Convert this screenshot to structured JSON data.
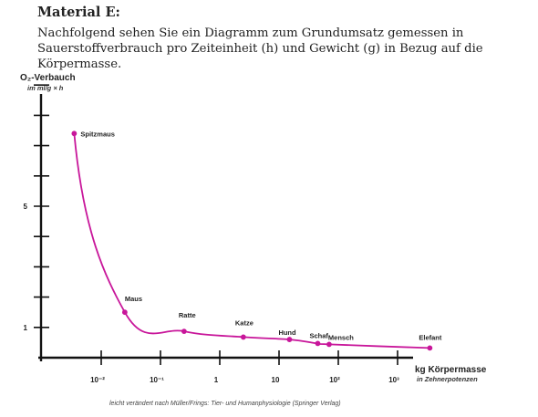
{
  "material": {
    "heading": "Material E:",
    "intro": "Nachfolgend sehen Sie ein Diagramm zum Grundumsatz gemessen in Sauerstoffver­brauch pro Zeiteinheit (h) und Gewicht (g) in Bezug auf die Körpermasse."
  },
  "chart_data": {
    "type": "line",
    "ylabel": "O₂-Verbauch",
    "yunit": "im ml/g × h",
    "xlabel": "kg Körpermasse",
    "xunit": "in Zehnerpotenzen",
    "xscale": "log",
    "x_ticks": [
      {
        "value": 0.01,
        "label": "10⁻²"
      },
      {
        "value": 0.1,
        "label": "10⁻¹"
      },
      {
        "value": 1,
        "label": "1"
      },
      {
        "value": 10,
        "label": "10"
      },
      {
        "value": 100,
        "label": "10²"
      },
      {
        "value": 1000,
        "label": "10³"
      }
    ],
    "y_ticks": [
      1,
      2,
      3,
      4,
      5,
      6,
      7,
      8,
      9
    ],
    "y_tick_labels": [
      {
        "value": 1,
        "label": "1"
      },
      {
        "value": 5,
        "label": "5"
      }
    ],
    "ylim": [
      0,
      9.5
    ],
    "points": [
      {
        "name": "Spitzmaus",
        "x": 0.0035,
        "y": 7.4
      },
      {
        "name": "Maus",
        "x": 0.025,
        "y": 1.5
      },
      {
        "name": "Ratte",
        "x": 0.25,
        "y": 0.87
      },
      {
        "name": "Katze",
        "x": 2.5,
        "y": 0.68
      },
      {
        "name": "Hund",
        "x": 15,
        "y": 0.6
      },
      {
        "name": "Schaf",
        "x": 45,
        "y": 0.47
      },
      {
        "name": "Mensch",
        "x": 70,
        "y": 0.44
      },
      {
        "name": "Elefant",
        "x": 3500,
        "y": 0.32
      }
    ],
    "line_color": "#c8169a",
    "source": "leicht verändert nach Müller/Frings: Tier- und Humanphysiologie (Springer Verlag)"
  }
}
